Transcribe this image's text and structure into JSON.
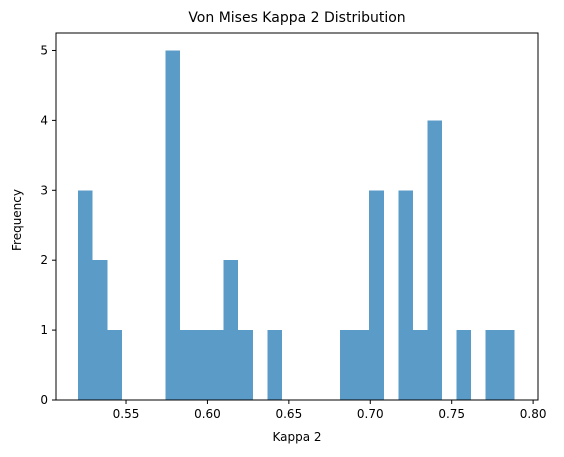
{
  "chart_data": {
    "type": "bar",
    "title": "Von Mises Kappa 2 Distribution",
    "xlabel": "Kappa 2",
    "ylabel": "Frequency",
    "xlim": [
      0.507,
      0.803
    ],
    "ylim": [
      0,
      5.25
    ],
    "xticks": [
      0.55,
      0.6,
      0.65,
      0.7,
      0.75,
      0.8
    ],
    "xtick_labels": [
      "0.55",
      "0.60",
      "0.65",
      "0.70",
      "0.75",
      "0.80"
    ],
    "yticks": [
      0,
      1,
      2,
      3,
      4,
      5
    ],
    "ytick_labels": [
      "0",
      "1",
      "2",
      "3",
      "4",
      "5"
    ],
    "bin_start": 0.5206,
    "bin_width": 0.008937,
    "counts": [
      3,
      2,
      1,
      0,
      0,
      0,
      5,
      1,
      1,
      1,
      2,
      1,
      0,
      1,
      0,
      0,
      0,
      0,
      1,
      1,
      3,
      0,
      3,
      1,
      4,
      0,
      1,
      0,
      1,
      1
    ],
    "bar_color": "#5a9bc8",
    "grid": false
  }
}
